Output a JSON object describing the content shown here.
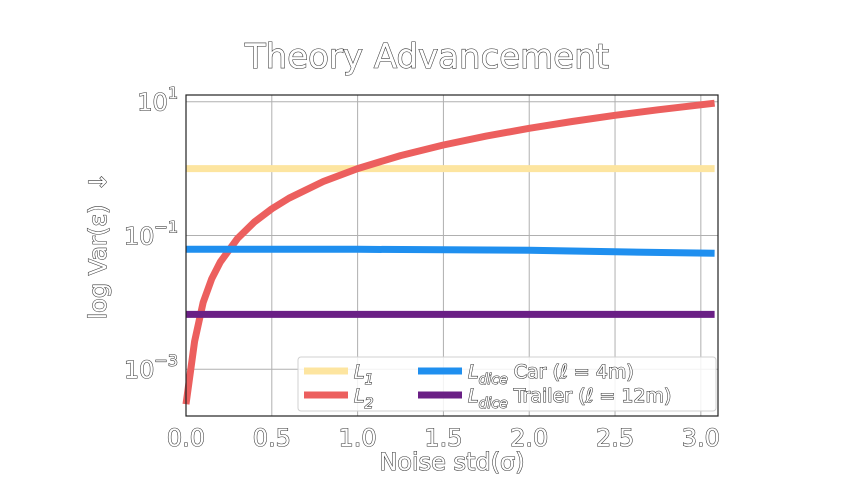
{
  "chart_data": {
    "type": "line",
    "title": "Theory Advancement",
    "xlabel": "Noise std(σ)",
    "ylabel": "log Var(ε)",
    "ylabel_arrow": "↓",
    "yscale": "log",
    "xlim": [
      0,
      3.1
    ],
    "ylim_exp": [
      -3.7,
      1.1
    ],
    "grid": true,
    "legend_position": "bottom-right",
    "x_ticks": [
      0.0,
      0.5,
      1.0,
      1.5,
      2.0,
      2.5,
      3.0
    ],
    "x_tick_labels": [
      "0.0",
      "0.5",
      "1.0",
      "1.5",
      "2.0",
      "2.5",
      "3.0"
    ],
    "y_ticks": [
      0.001,
      0.1,
      10
    ],
    "y_tick_labels": [
      {
        "base": "10",
        "exp": "−3"
      },
      {
        "base": "10",
        "exp": "−1"
      },
      {
        "base": "10",
        "exp": "1"
      }
    ],
    "series": [
      {
        "name": "L1",
        "name_main": "L",
        "name_sub": "1",
        "color": "#fde5a0",
        "x": [
          0.0,
          3.08
        ],
        "y": [
          1.0,
          1.0
        ]
      },
      {
        "name": "L2",
        "name_main": "L",
        "name_sub": "2",
        "color": "#ec5f5e",
        "x": [
          0.0,
          0.05,
          0.1,
          0.15,
          0.2,
          0.3,
          0.4,
          0.5,
          0.6,
          0.8,
          1.0,
          1.25,
          1.5,
          1.75,
          2.0,
          2.25,
          2.5,
          2.75,
          3.08
        ],
        "y": [
          0.0003,
          0.0026,
          0.01,
          0.0225,
          0.04,
          0.09,
          0.16,
          0.25,
          0.36,
          0.64,
          1.0,
          1.5625,
          2.25,
          3.0625,
          4.0,
          5.0625,
          6.25,
          7.5625,
          9.4864
        ]
      },
      {
        "name": "Ldice Car (ℓ = 4m)",
        "name_main": "L",
        "name_sub": "dice",
        "name_rest": " Car (ℓ = 4m)",
        "color": "#1f8fef",
        "x": [
          0.0,
          1.0,
          2.0,
          2.5,
          3.08
        ],
        "y": [
          0.062,
          0.062,
          0.06,
          0.057,
          0.054
        ]
      },
      {
        "name": "Ldice Trailer (ℓ = 12m)",
        "name_main": "L",
        "name_sub": "dice",
        "name_rest": " Trailer (ℓ = 12m)",
        "color": "#6a1f85",
        "x": [
          0.0,
          3.08
        ],
        "y": [
          0.0066,
          0.0066
        ]
      }
    ]
  }
}
